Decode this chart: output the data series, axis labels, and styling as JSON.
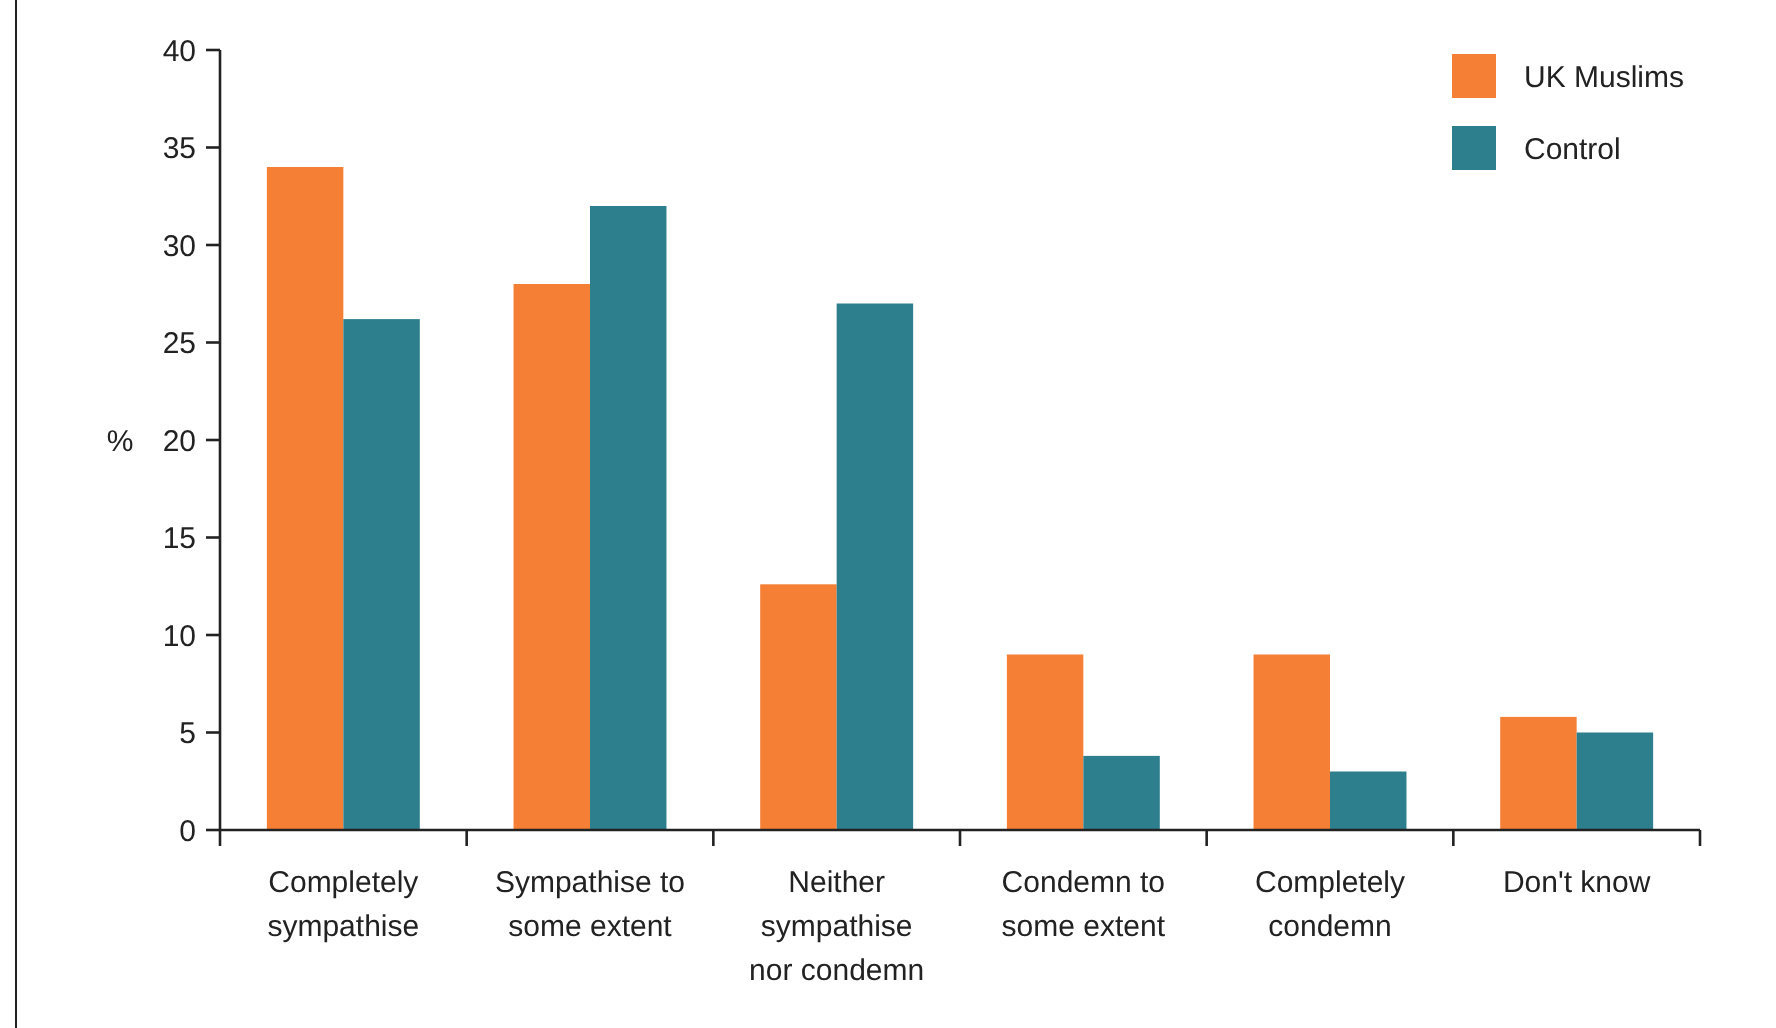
{
  "chart_data": {
    "type": "bar",
    "ylabel": "%",
    "categories": [
      "Completely sympathise",
      "Sympathise to some extent",
      "Neither sympathise nor condemn",
      "Condemn to some extent",
      "Completely condemn",
      "Don't know"
    ],
    "series": [
      {
        "name": "UK Muslims",
        "color": "#f47f35",
        "values": [
          34,
          28,
          12.6,
          9,
          9,
          5.8
        ]
      },
      {
        "name": "Control",
        "color": "#2e7f8e",
        "values": [
          26.2,
          32,
          27,
          3.8,
          3,
          5
        ]
      }
    ],
    "ylim": [
      0,
      40
    ],
    "yticks": [
      0,
      5,
      10,
      15,
      20,
      25,
      30,
      35,
      40
    ],
    "grid": false,
    "legend": "top right"
  }
}
